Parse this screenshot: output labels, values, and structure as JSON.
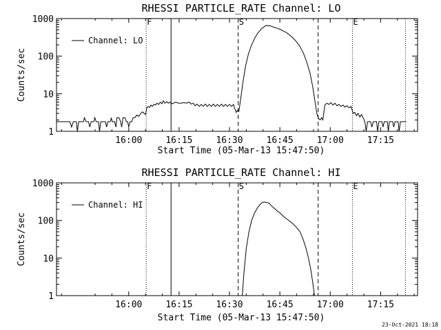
{
  "footer": {
    "timestamp": "23-Oct-2021 18:18"
  },
  "chart_data": [
    {
      "type": "line",
      "title": "RHESSI PARTICLE_RATE Channel: LO",
      "xlabel": "Start Time (05-Mar-13 15:47:50)",
      "ylabel": "Counts/sec",
      "legend": "Channel: LO",
      "legend_position": "top-left",
      "yscale": "log",
      "xlim_min": [
        -21.5,
        86
      ],
      "ylim": [
        1,
        1000
      ],
      "x_tick_labels": [
        "16:00",
        "16:15",
        "16:30",
        "16:45",
        "17:00",
        "17:15"
      ],
      "x_tick_values_min": [
        0,
        15,
        30,
        45,
        60,
        75
      ],
      "y_tick_labels": [
        "1000",
        "100",
        "10",
        "1"
      ],
      "y_tick_values": [
        1000,
        100,
        10,
        1
      ],
      "markers": [
        {
          "label": "F",
          "x_min": 5.2,
          "style": "dotted"
        },
        {
          "label": "",
          "x_min": 12.6,
          "style": "solid"
        },
        {
          "label": "S",
          "x_min": 32.6,
          "style": "dashed"
        },
        {
          "label": "",
          "x_min": 56.4,
          "style": "dashed"
        },
        {
          "label": "E",
          "x_min": 66.6,
          "style": "dotted"
        },
        {
          "label": "",
          "x_min": 82.4,
          "style": "dotted"
        }
      ],
      "series": [
        {
          "name": "Channel: LO",
          "points": [
            [
              -21.5,
              1.8
            ],
            [
              -19,
              1.8
            ],
            [
              -17.5,
              1.8
            ],
            [
              -17,
              1.3
            ],
            [
              -16.5,
              1.8
            ],
            [
              -15.6,
              1.8
            ],
            [
              -15.3,
              1.0
            ],
            [
              -14.9,
              1.8
            ],
            [
              -13.5,
              1.8
            ],
            [
              -13.2,
              2.3
            ],
            [
              -12.7,
              1.8
            ],
            [
              -12,
              1.8
            ],
            [
              -11.6,
              1.3
            ],
            [
              -11.2,
              1.8
            ],
            [
              -10.4,
              1.8
            ],
            [
              -10.1,
              2.3
            ],
            [
              -9.7,
              1.8
            ],
            [
              -9,
              1.8
            ],
            [
              -8.7,
              1.0
            ],
            [
              -8.3,
              1.8
            ],
            [
              -6.9,
              1.8
            ],
            [
              -6.6,
              1.3
            ],
            [
              -6.2,
              1.8
            ],
            [
              -5.5,
              1.8
            ],
            [
              -5.2,
              2.3
            ],
            [
              -4.9,
              1.8
            ],
            [
              -4.2,
              1.8
            ],
            [
              -3.8,
              1.3
            ],
            [
              -3.5,
              2.3
            ],
            [
              -2.9,
              2.3
            ],
            [
              -2.4,
              1.8
            ],
            [
              -2.1,
              1.3
            ],
            [
              -1.7,
              2.3
            ],
            [
              -1.1,
              2.3
            ],
            [
              -0.7,
              1.8
            ],
            [
              -0.3,
              1.8
            ],
            [
              0,
              1.3
            ],
            [
              0.4,
              1.8
            ],
            [
              0.9,
              1.8
            ],
            [
              1.3,
              2.3
            ],
            [
              1.8,
              2.3
            ],
            [
              2.4,
              2.7
            ],
            [
              3,
              2.5
            ],
            [
              3.6,
              3.0
            ],
            [
              4.1,
              3.3
            ],
            [
              4.6,
              3.0
            ],
            [
              5.0,
              2.8
            ],
            [
              5.4,
              4.2
            ],
            [
              5.8,
              4.6
            ],
            [
              6.2,
              4.3
            ],
            [
              6.6,
              5.0
            ],
            [
              7,
              4.6
            ],
            [
              7.5,
              5.2
            ],
            [
              8,
              5.0
            ],
            [
              8.4,
              5.6
            ],
            [
              8.9,
              5.2
            ],
            [
              9.4,
              6.0
            ],
            [
              9.9,
              5.4
            ],
            [
              10.3,
              6.5
            ],
            [
              10.8,
              5.6
            ],
            [
              11.3,
              6.2
            ],
            [
              11.8,
              5.6
            ],
            [
              12.3,
              6.0
            ],
            [
              12.8,
              5.4
            ],
            [
              13.4,
              5.6
            ],
            [
              14,
              6.0
            ],
            [
              14.8,
              5.6
            ],
            [
              15.6,
              5.6
            ],
            [
              16.4,
              5.8
            ],
            [
              17.2,
              5.6
            ],
            [
              18,
              6.0
            ],
            [
              18.6,
              5.3
            ],
            [
              19.2,
              5.6
            ],
            [
              19.8,
              4.8
            ],
            [
              20.4,
              5.3
            ],
            [
              21,
              4.6
            ],
            [
              21.6,
              5.2
            ],
            [
              22.2,
              4.6
            ],
            [
              22.8,
              5.3
            ],
            [
              23.4,
              4.6
            ],
            [
              24,
              5.2
            ],
            [
              24.6,
              4.6
            ],
            [
              25.2,
              5.3
            ],
            [
              25.8,
              4.6
            ],
            [
              26.4,
              5.2
            ],
            [
              27,
              4.6
            ],
            [
              27.6,
              5.3
            ],
            [
              28.2,
              4.6
            ],
            [
              28.8,
              5.2
            ],
            [
              29.4,
              4.6
            ],
            [
              30,
              5.2
            ],
            [
              30.6,
              4.6
            ],
            [
              31.2,
              5.2
            ],
            [
              31.6,
              4.0
            ],
            [
              32,
              3.2
            ],
            [
              32.4,
              3.6
            ],
            [
              32.8,
              3.4
            ],
            [
              33.4,
              8
            ],
            [
              34,
              20
            ],
            [
              34.8,
              55
            ],
            [
              35.6,
              110
            ],
            [
              36.5,
              190
            ],
            [
              37.5,
              300
            ],
            [
              38.5,
              420
            ],
            [
              39.5,
              530
            ],
            [
              40.5,
              620
            ],
            [
              41,
              660
            ],
            [
              41.5,
              640
            ],
            [
              42,
              650
            ],
            [
              42.5,
              620
            ],
            [
              43,
              600
            ],
            [
              44,
              560
            ],
            [
              45,
              520
            ],
            [
              46,
              470
            ],
            [
              47,
              420
            ],
            [
              48,
              360
            ],
            [
              49,
              300
            ],
            [
              50,
              240
            ],
            [
              51,
              180
            ],
            [
              52,
              120
            ],
            [
              53,
              70
            ],
            [
              54,
              35
            ],
            [
              54.8,
              15
            ],
            [
              55.5,
              6
            ],
            [
              56,
              3
            ],
            [
              56.5,
              2.2
            ],
            [
              57,
              2.0
            ],
            [
              57.4,
              2.3
            ],
            [
              57.8,
              2.0
            ],
            [
              58.4,
              5.0
            ],
            [
              59,
              5.6
            ],
            [
              59.6,
              5.2
            ],
            [
              60.2,
              5.8
            ],
            [
              60.8,
              5.0
            ],
            [
              61.4,
              5.6
            ],
            [
              62,
              4.8
            ],
            [
              62.6,
              5.2
            ],
            [
              63.2,
              4.6
            ],
            [
              63.8,
              5.0
            ],
            [
              64.4,
              4.4
            ],
            [
              65,
              4.8
            ],
            [
              65.6,
              4.2
            ],
            [
              66.2,
              4.6
            ],
            [
              66.8,
              3.0
            ],
            [
              67.3,
              3.2
            ],
            [
              67.8,
              2.6
            ],
            [
              68.3,
              3.0
            ],
            [
              68.8,
              2.4
            ],
            [
              69.3,
              2.8
            ],
            [
              69.8,
              2.3
            ],
            [
              70.3,
              1.8
            ],
            [
              70.7,
              1.0
            ],
            [
              71.1,
              1.8
            ],
            [
              72,
              1.8
            ],
            [
              72.4,
              1.3
            ],
            [
              72.8,
              1.8
            ],
            [
              73.8,
              1.8
            ],
            [
              74.1,
              1.0
            ],
            [
              74.5,
              1.8
            ],
            [
              75.4,
              1.8
            ],
            [
              75.7,
              1.3
            ],
            [
              76.1,
              1.8
            ],
            [
              77,
              1.8
            ],
            [
              77.3,
              1.0
            ],
            [
              77.6,
              1.8
            ],
            [
              78.6,
              1.8
            ],
            [
              78.9,
              1.3
            ],
            [
              79.3,
              1.8
            ],
            [
              80.2,
              1.8
            ],
            [
              80.5,
              1.0
            ],
            [
              80.9,
              1.8
            ],
            [
              82,
              1.8
            ],
            [
              82.6,
              1.8
            ]
          ]
        }
      ]
    },
    {
      "type": "line",
      "title": "RHESSI PARTICLE_RATE Channel: HI",
      "xlabel": "Start Time (05-Mar-13 15:47:50)",
      "ylabel": "Counts/sec",
      "legend": "Channel: HI",
      "legend_position": "top-left",
      "yscale": "log",
      "xlim_min": [
        -21.5,
        86
      ],
      "ylim": [
        1,
        1000
      ],
      "x_tick_labels": [
        "16:00",
        "16:15",
        "16:30",
        "16:45",
        "17:00",
        "17:15"
      ],
      "x_tick_values_min": [
        0,
        15,
        30,
        45,
        60,
        75
      ],
      "y_tick_labels": [
        "1000",
        "100",
        "10",
        "1"
      ],
      "y_tick_values": [
        1000,
        100,
        10,
        1
      ],
      "markers": [
        {
          "label": "F",
          "x_min": 5.2,
          "style": "dotted"
        },
        {
          "label": "",
          "x_min": 12.6,
          "style": "solid"
        },
        {
          "label": "S",
          "x_min": 32.6,
          "style": "dashed"
        },
        {
          "label": "",
          "x_min": 56.4,
          "style": "dashed"
        },
        {
          "label": "E",
          "x_min": 66.6,
          "style": "dotted"
        },
        {
          "label": "",
          "x_min": 82.4,
          "style": "dotted"
        }
      ],
      "series": [
        {
          "name": "Channel: HI",
          "points": [
            [
              33.8,
              1.0
            ],
            [
              34.3,
              4
            ],
            [
              35,
              18
            ],
            [
              35.8,
              50
            ],
            [
              36.6,
              100
            ],
            [
              37.5,
              160
            ],
            [
              38.5,
              230
            ],
            [
              39.5,
              290
            ],
            [
              40.3,
              310
            ],
            [
              41,
              300
            ],
            [
              41.8,
              290
            ],
            [
              42.6,
              240
            ],
            [
              43.4,
              210
            ],
            [
              44.2,
              180
            ],
            [
              45,
              160
            ],
            [
              46,
              130
            ],
            [
              47,
              110
            ],
            [
              48,
              95
            ],
            [
              49,
              80
            ],
            [
              50,
              65
            ],
            [
              51,
              50
            ],
            [
              52,
              30
            ],
            [
              52.8,
              18
            ],
            [
              53.5,
              10
            ],
            [
              54.2,
              5
            ],
            [
              54.8,
              2.2
            ],
            [
              55.3,
              1.0
            ]
          ]
        }
      ]
    }
  ]
}
